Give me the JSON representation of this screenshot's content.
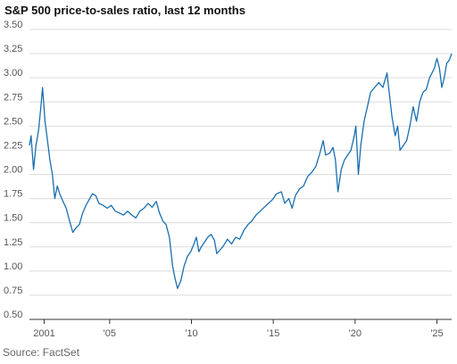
{
  "title": "S&P 500 price-to-sales ratio, last 12 months",
  "source": "Source: FactSet",
  "chart_data": {
    "type": "line",
    "title": "S&P 500 price-to-sales ratio, last 12 months",
    "xlabel": "",
    "ylabel": "",
    "ylim": [
      0.5,
      3.5
    ],
    "xlim": [
      2000.1,
      2025.9
    ],
    "grid": true,
    "legend": "none",
    "y_ticks": [
      {
        "value": 0.5,
        "label": "0.50"
      },
      {
        "value": 0.75,
        "label": "0.75"
      },
      {
        "value": 1.0,
        "label": "1.00"
      },
      {
        "value": 1.25,
        "label": "1.25"
      },
      {
        "value": 1.5,
        "label": "1.50"
      },
      {
        "value": 1.75,
        "label": "1.75"
      },
      {
        "value": 2.0,
        "label": "2.00"
      },
      {
        "value": 2.25,
        "label": "2.25"
      },
      {
        "value": 2.5,
        "label": "2.50"
      },
      {
        "value": 2.75,
        "label": "2.75"
      },
      {
        "value": 3.0,
        "label": "3.00"
      },
      {
        "value": 3.25,
        "label": "3.25"
      },
      {
        "value": 3.5,
        "label": "3.50"
      }
    ],
    "x_ticks": [
      {
        "value": 2001,
        "label": "2001"
      },
      {
        "value": 2005,
        "label": "'05"
      },
      {
        "value": 2010,
        "label": "'10"
      },
      {
        "value": 2015,
        "label": "'15"
      },
      {
        "value": 2020,
        "label": "'20"
      },
      {
        "value": 2025,
        "label": "'25"
      }
    ],
    "series": [
      {
        "color": "#1a6fb0",
        "points": [
          [
            2000.1,
            2.3
          ],
          [
            2000.2,
            2.4
          ],
          [
            2000.35,
            2.05
          ],
          [
            2000.5,
            2.3
          ],
          [
            2000.65,
            2.45
          ],
          [
            2000.8,
            2.7
          ],
          [
            2000.9,
            2.9
          ],
          [
            2001.05,
            2.55
          ],
          [
            2001.2,
            2.35
          ],
          [
            2001.35,
            2.15
          ],
          [
            2001.5,
            2.0
          ],
          [
            2001.65,
            1.75
          ],
          [
            2001.8,
            1.88
          ],
          [
            2001.95,
            1.8
          ],
          [
            2002.15,
            1.72
          ],
          [
            2002.35,
            1.65
          ],
          [
            2002.55,
            1.52
          ],
          [
            2002.75,
            1.4
          ],
          [
            2002.95,
            1.45
          ],
          [
            2003.15,
            1.48
          ],
          [
            2003.35,
            1.6
          ],
          [
            2003.55,
            1.68
          ],
          [
            2003.75,
            1.74
          ],
          [
            2003.95,
            1.8
          ],
          [
            2004.15,
            1.78
          ],
          [
            2004.35,
            1.7
          ],
          [
            2004.6,
            1.68
          ],
          [
            2004.85,
            1.65
          ],
          [
            2005.1,
            1.68
          ],
          [
            2005.35,
            1.62
          ],
          [
            2005.6,
            1.6
          ],
          [
            2005.85,
            1.58
          ],
          [
            2006.1,
            1.62
          ],
          [
            2006.35,
            1.58
          ],
          [
            2006.6,
            1.55
          ],
          [
            2006.85,
            1.62
          ],
          [
            2007.1,
            1.65
          ],
          [
            2007.35,
            1.7
          ],
          [
            2007.6,
            1.66
          ],
          [
            2007.85,
            1.72
          ],
          [
            2008.05,
            1.6
          ],
          [
            2008.25,
            1.52
          ],
          [
            2008.45,
            1.48
          ],
          [
            2008.65,
            1.35
          ],
          [
            2008.85,
            1.05
          ],
          [
            2009.0,
            0.92
          ],
          [
            2009.15,
            0.82
          ],
          [
            2009.35,
            0.9
          ],
          [
            2009.55,
            1.05
          ],
          [
            2009.75,
            1.15
          ],
          [
            2009.95,
            1.2
          ],
          [
            2010.15,
            1.28
          ],
          [
            2010.3,
            1.35
          ],
          [
            2010.45,
            1.2
          ],
          [
            2010.6,
            1.25
          ],
          [
            2010.8,
            1.3
          ],
          [
            2011.0,
            1.35
          ],
          [
            2011.2,
            1.38
          ],
          [
            2011.4,
            1.32
          ],
          [
            2011.55,
            1.18
          ],
          [
            2011.75,
            1.22
          ],
          [
            2011.95,
            1.26
          ],
          [
            2012.2,
            1.33
          ],
          [
            2012.45,
            1.28
          ],
          [
            2012.7,
            1.35
          ],
          [
            2012.95,
            1.33
          ],
          [
            2013.2,
            1.42
          ],
          [
            2013.45,
            1.48
          ],
          [
            2013.7,
            1.52
          ],
          [
            2013.95,
            1.58
          ],
          [
            2014.2,
            1.62
          ],
          [
            2014.45,
            1.66
          ],
          [
            2014.7,
            1.7
          ],
          [
            2014.95,
            1.74
          ],
          [
            2015.2,
            1.8
          ],
          [
            2015.5,
            1.82
          ],
          [
            2015.7,
            1.7
          ],
          [
            2015.95,
            1.75
          ],
          [
            2016.15,
            1.65
          ],
          [
            2016.35,
            1.78
          ],
          [
            2016.6,
            1.85
          ],
          [
            2016.85,
            1.88
          ],
          [
            2017.1,
            1.98
          ],
          [
            2017.35,
            2.02
          ],
          [
            2017.6,
            2.08
          ],
          [
            2017.85,
            2.22
          ],
          [
            2018.05,
            2.35
          ],
          [
            2018.2,
            2.2
          ],
          [
            2018.45,
            2.22
          ],
          [
            2018.65,
            2.28
          ],
          [
            2018.8,
            2.15
          ],
          [
            2018.95,
            1.82
          ],
          [
            2019.15,
            2.05
          ],
          [
            2019.35,
            2.15
          ],
          [
            2019.55,
            2.2
          ],
          [
            2019.75,
            2.25
          ],
          [
            2019.95,
            2.4
          ],
          [
            2020.05,
            2.5
          ],
          [
            2020.2,
            2.0
          ],
          [
            2020.35,
            2.3
          ],
          [
            2020.55,
            2.55
          ],
          [
            2020.75,
            2.7
          ],
          [
            2020.95,
            2.85
          ],
          [
            2021.2,
            2.9
          ],
          [
            2021.45,
            2.95
          ],
          [
            2021.7,
            2.9
          ],
          [
            2021.95,
            3.05
          ],
          [
            2022.05,
            2.9
          ],
          [
            2022.25,
            2.6
          ],
          [
            2022.45,
            2.4
          ],
          [
            2022.6,
            2.5
          ],
          [
            2022.75,
            2.25
          ],
          [
            2022.95,
            2.3
          ],
          [
            2023.15,
            2.35
          ],
          [
            2023.35,
            2.5
          ],
          [
            2023.55,
            2.7
          ],
          [
            2023.75,
            2.55
          ],
          [
            2023.95,
            2.75
          ],
          [
            2024.15,
            2.85
          ],
          [
            2024.35,
            2.88
          ],
          [
            2024.55,
            3.0
          ],
          [
            2024.7,
            3.05
          ],
          [
            2024.85,
            3.1
          ],
          [
            2025.0,
            3.2
          ],
          [
            2025.15,
            3.1
          ],
          [
            2025.3,
            2.9
          ],
          [
            2025.45,
            3.0
          ],
          [
            2025.6,
            3.15
          ],
          [
            2025.75,
            3.18
          ],
          [
            2025.9,
            3.25
          ]
        ]
      }
    ]
  }
}
